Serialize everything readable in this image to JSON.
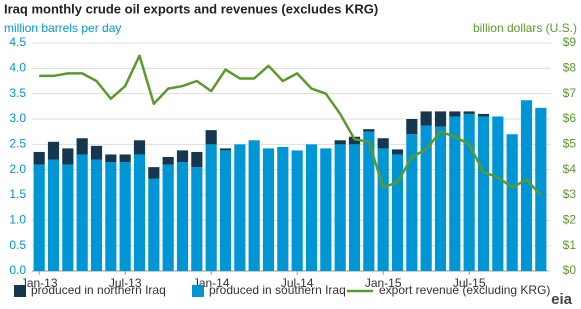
{
  "chart_data": {
    "type": "bar_line",
    "title": "Iraq monthly crude oil exports and revenues (excludes KRG)",
    "y_label": "million barrels per day",
    "y2_label": "billion dollars (U.S.)",
    "categories": [
      "Jan-13",
      null,
      null,
      null,
      null,
      null,
      "Jul-13",
      null,
      null,
      null,
      null,
      null,
      "Jan-14",
      null,
      null,
      null,
      null,
      null,
      "Jul-14",
      null,
      null,
      null,
      null,
      null,
      "Jan-15",
      null,
      null,
      null,
      null,
      null,
      "Jul-15",
      null,
      null,
      null,
      null,
      null
    ],
    "series": [
      {
        "name": "produced in northern Iraq",
        "color": "#16384f",
        "stack": true,
        "values": [
          0.25,
          0.35,
          0.32,
          0.32,
          0.27,
          0.15,
          0.15,
          0.28,
          0.23,
          0.15,
          0.23,
          0.3,
          0.28,
          0.04,
          0,
          0,
          0,
          0,
          0,
          0,
          0,
          0.08,
          0.15,
          0.05,
          0.2,
          0.1,
          0.3,
          0.28,
          0.3,
          0.1,
          0.05,
          0.05,
          0,
          0,
          0,
          0
        ]
      },
      {
        "name": "produced in southern Iraq",
        "color": "#0096d6",
        "stack": true,
        "values": [
          2.1,
          2.2,
          2.1,
          2.3,
          2.2,
          2.15,
          2.15,
          2.3,
          1.82,
          2.1,
          2.15,
          2.05,
          2.5,
          2.38,
          2.5,
          2.58,
          2.42,
          2.45,
          2.38,
          2.5,
          2.42,
          2.5,
          2.5,
          2.75,
          2.42,
          2.3,
          2.7,
          2.87,
          2.85,
          3.05,
          3.1,
          3.05,
          3.05,
          2.7,
          3.37,
          3.22
        ]
      },
      {
        "name": "export revenue (excluding KRG)",
        "color": "#5a9a2a",
        "axis": "y2",
        "values": [
          7.7,
          7.7,
          7.8,
          7.8,
          7.5,
          6.8,
          7.3,
          8.5,
          6.6,
          7.2,
          7.3,
          7.5,
          7.1,
          7.95,
          7.6,
          7.6,
          8.1,
          7.5,
          7.8,
          7.2,
          7.0,
          6.2,
          5.2,
          5.1,
          3.3,
          3.5,
          4.5,
          4.8,
          5.5,
          5.3,
          5.0,
          3.9,
          3.7,
          3.3,
          3.6,
          3.0
        ]
      }
    ],
    "ylim": [
      0,
      4.5
    ],
    "yticks": [
      {
        "value": 0,
        "label": "0.0"
      },
      0.5,
      {
        "value": 1,
        "label": "1.0"
      },
      1.5,
      {
        "value": 2,
        "label": "2.0"
      },
      2.5,
      {
        "value": 3,
        "label": "3.0"
      },
      3.5,
      {
        "value": 4,
        "label": "4.0"
      },
      4.5
    ],
    "y2lim": [
      0,
      9
    ],
    "y2ticks": [
      {
        "value": 0,
        "label": "$0"
      },
      {
        "value": 1,
        "label": "$1"
      },
      {
        "value": 2,
        "label": "$2"
      },
      {
        "value": 3,
        "label": "$3"
      },
      {
        "value": 4,
        "label": "$4"
      },
      {
        "value": 5,
        "label": "$5"
      },
      {
        "value": 6,
        "label": "$6"
      },
      {
        "value": 7,
        "label": "$7"
      },
      {
        "value": 8,
        "label": "$8"
      },
      {
        "value": 9,
        "label": "$9"
      }
    ],
    "grid": true,
    "legend": "bottom",
    "source_logo": "eia"
  }
}
